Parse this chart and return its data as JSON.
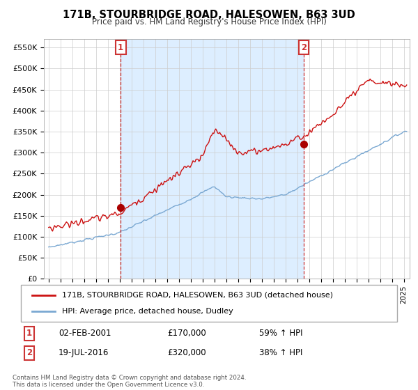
{
  "title": "171B, STOURBRIDGE ROAD, HALESOWEN, B63 3UD",
  "subtitle": "Price paid vs. HM Land Registry's House Price Index (HPI)",
  "ylabel_ticks": [
    "£0",
    "£50K",
    "£100K",
    "£150K",
    "£200K",
    "£250K",
    "£300K",
    "£350K",
    "£400K",
    "£450K",
    "£500K",
    "£550K"
  ],
  "ytick_values": [
    0,
    50000,
    100000,
    150000,
    200000,
    250000,
    300000,
    350000,
    400000,
    450000,
    500000,
    550000
  ],
  "ylim": [
    0,
    570000
  ],
  "xlim_start": 1994.6,
  "xlim_end": 2025.5,
  "sale1_x": 2001.085,
  "sale1_y": 170000,
  "sale2_x": 2016.546,
  "sale2_y": 320000,
  "hpi_color": "#7aa8d2",
  "price_color": "#cc1111",
  "marker_color": "#aa0000",
  "vline_color": "#cc3333",
  "shade_color": "#ddeeff",
  "legend_label1": "171B, STOURBRIDGE ROAD, HALESOWEN, B63 3UD (detached house)",
  "legend_label2": "HPI: Average price, detached house, Dudley",
  "table_date1": "02-FEB-2001",
  "table_price1": "£170,000",
  "table_hpi1": "59% ↑ HPI",
  "table_date2": "19-JUL-2016",
  "table_price2": "£320,000",
  "table_hpi2": "38% ↑ HPI",
  "footnote": "Contains HM Land Registry data © Crown copyright and database right 2024.\nThis data is licensed under the Open Government Licence v3.0.",
  "background_color": "#ffffff",
  "plot_bg_color": "#ffffff",
  "grid_color": "#cccccc"
}
